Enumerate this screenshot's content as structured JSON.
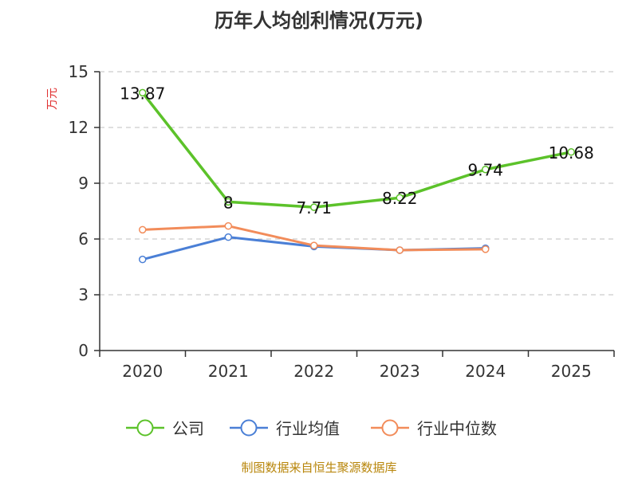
{
  "chart_data": {
    "type": "line",
    "title": "历年人均创利情况(万元)",
    "ylabel": "万元",
    "xlabel": "",
    "ylim": [
      0,
      15
    ],
    "yticks": [
      0,
      3,
      6,
      9,
      12,
      15
    ],
    "categories": [
      "2020",
      "2021",
      "2022",
      "2023",
      "2024",
      "2025"
    ],
    "series": [
      {
        "name": "公司",
        "color": "#5cc22a",
        "values": [
          13.87,
          8,
          7.71,
          8.22,
          9.74,
          10.68
        ],
        "labels": [
          "13.87",
          "8",
          "7.71",
          "8.22",
          "9.74",
          "10.68"
        ]
      },
      {
        "name": "行业均值",
        "color": "#4a7fd6",
        "values": [
          4.9,
          6.1,
          5.6,
          5.4,
          5.5,
          null
        ]
      },
      {
        "name": "行业中位数",
        "color": "#f28c5a",
        "values": [
          6.5,
          6.7,
          5.65,
          5.4,
          5.45,
          null
        ]
      }
    ],
    "grid": true,
    "legend": "bottom"
  },
  "source": "制图数据来自恒生聚源数据库"
}
